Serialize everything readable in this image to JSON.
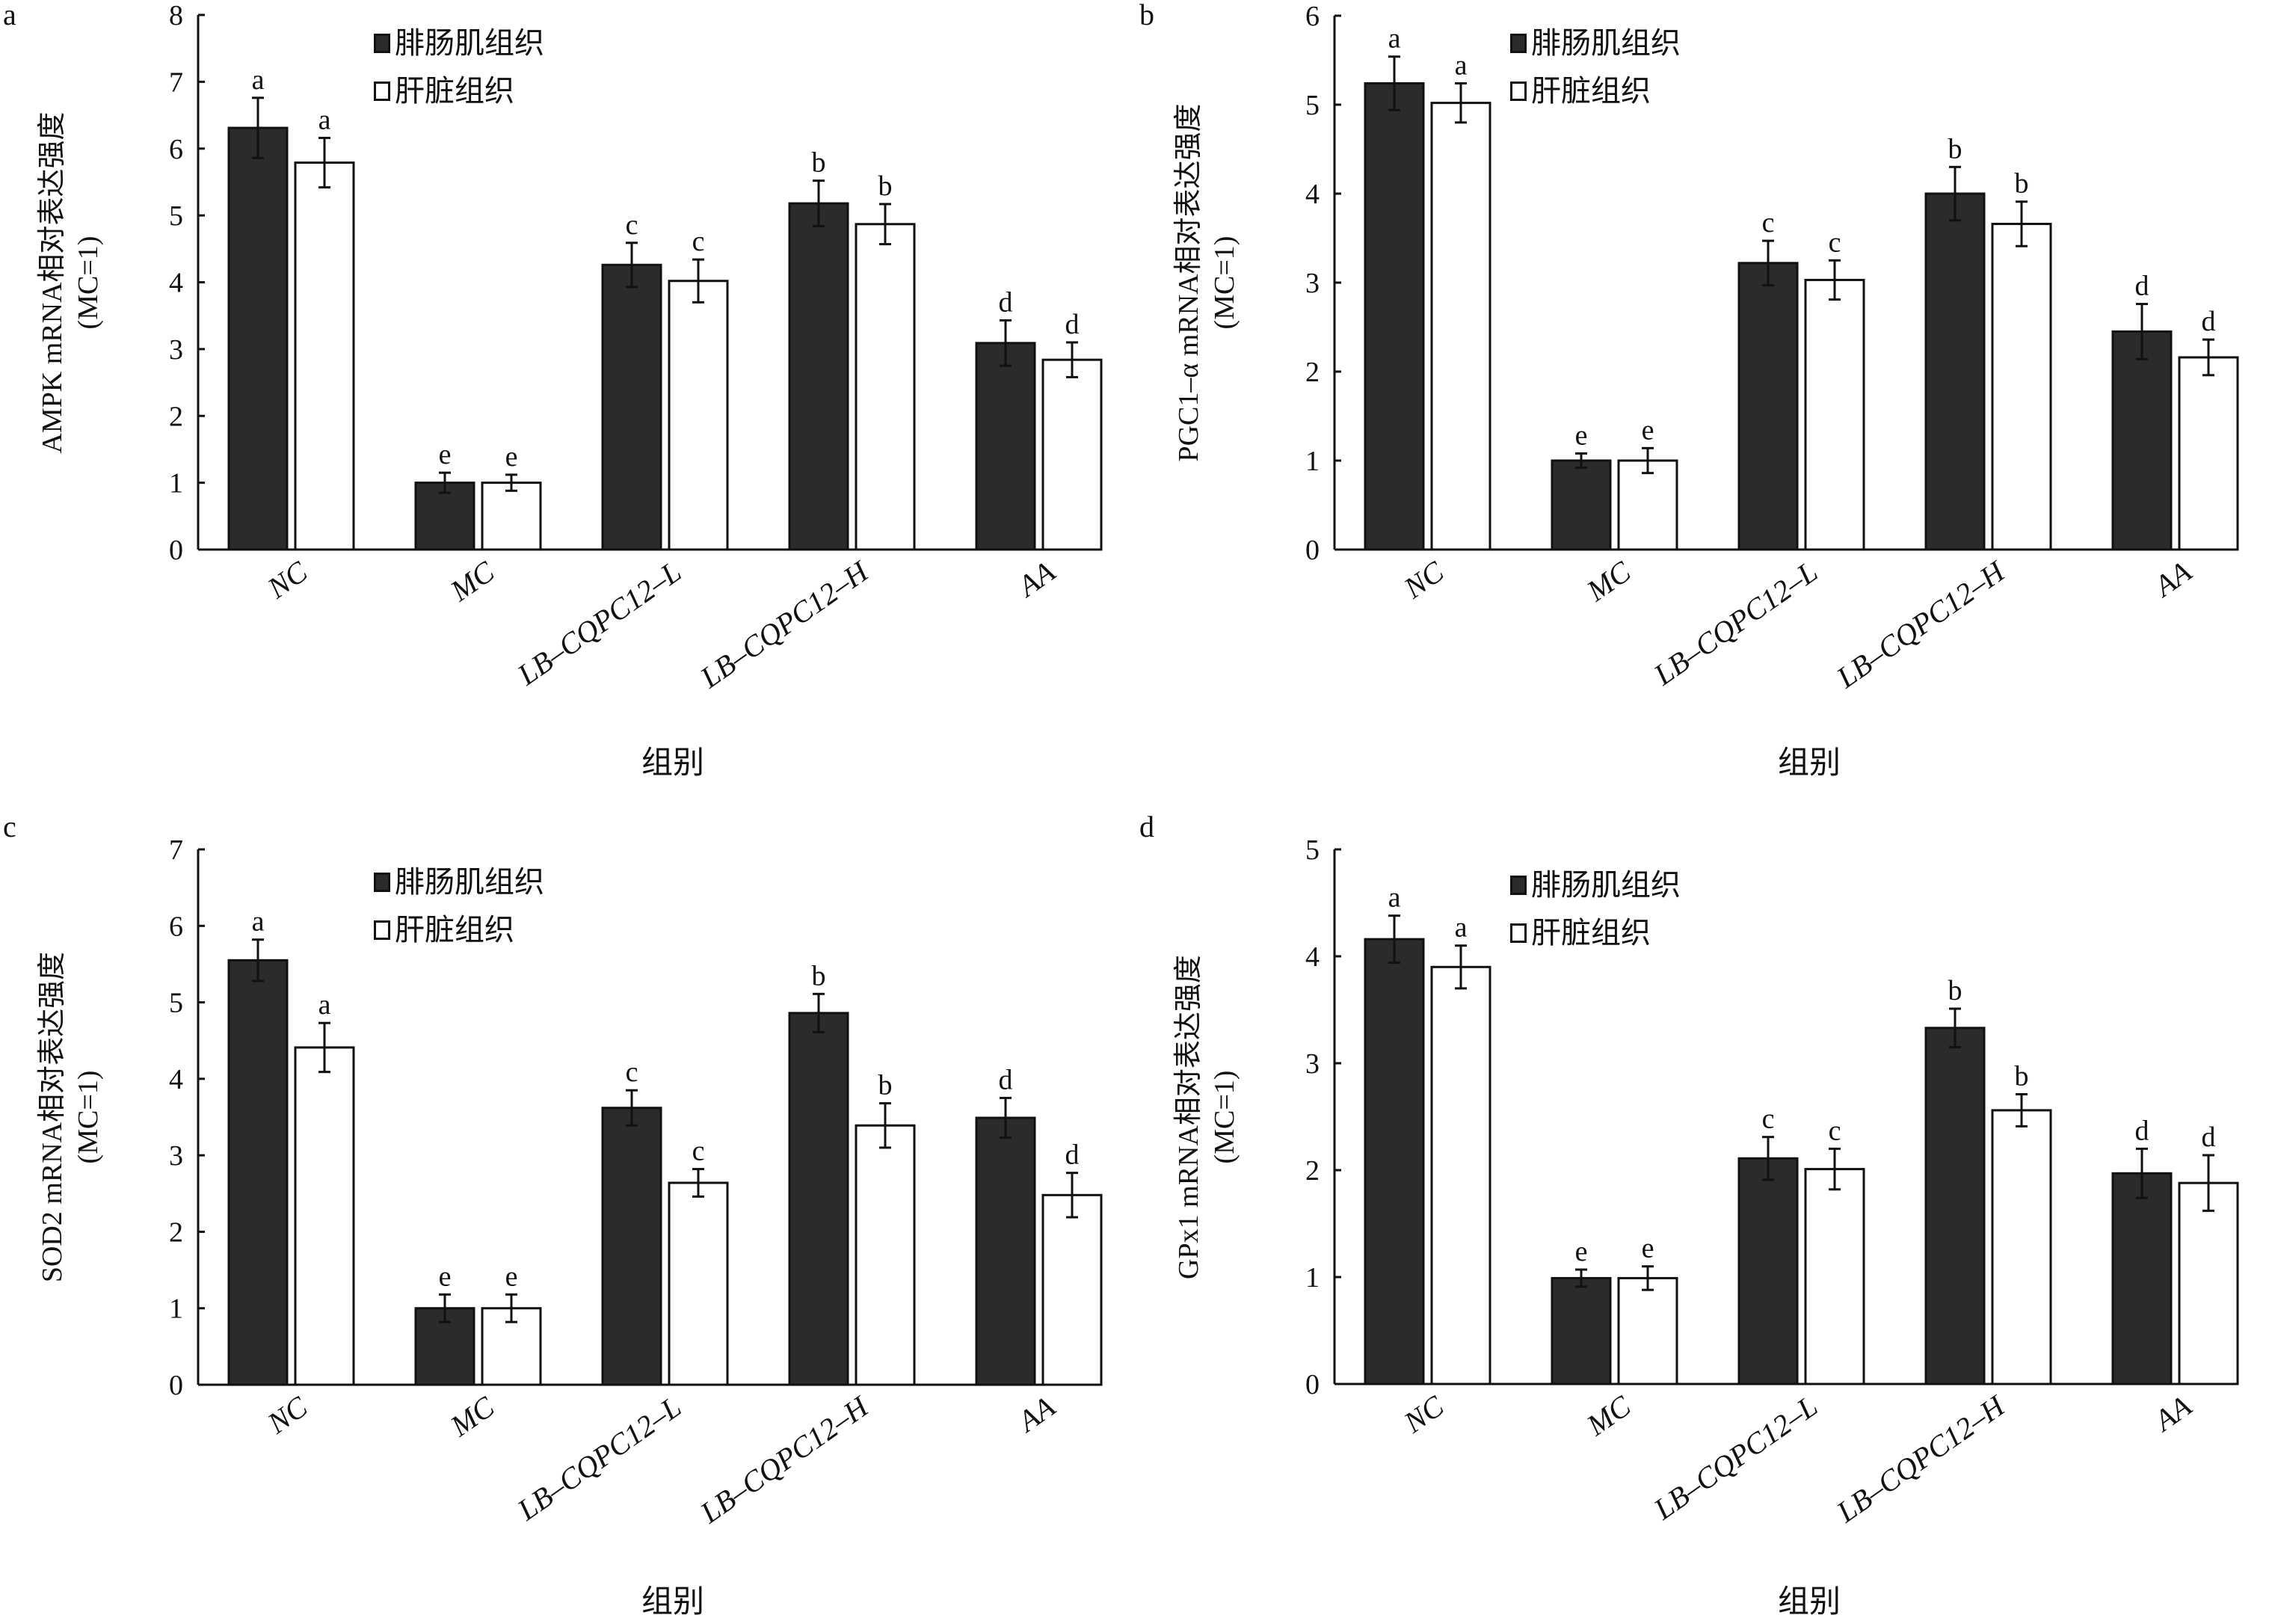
{
  "figure": {
    "legend": {
      "muscle": "腓肠肌组织",
      "liver": "肝脏组织"
    },
    "xlabel": "组别",
    "colors": {
      "muscle": "#2b2b2b",
      "liver": "#ffffff",
      "axis": "#111111"
    }
  },
  "chart_data": [
    {
      "panel": "a",
      "type": "bar",
      "title": "",
      "ylabel": "AMPK mRNA相对表达强度",
      "ylabel_unit": "(MC=1)",
      "xlabel": "组别",
      "ylim": [
        0,
        8
      ],
      "yticks": [
        "0",
        "1",
        "2",
        "3",
        "4",
        "5",
        "6",
        "7",
        "8"
      ],
      "categories": [
        "NC",
        "MC",
        "LB–CQPC12–L",
        "LB–CQPC12–H",
        "AA"
      ],
      "legend_position": "top-center",
      "series": [
        {
          "name": "腓肠肌组织",
          "values": [
            6.31,
            1.0,
            4.26,
            5.18,
            3.09
          ],
          "errors": [
            0.45,
            0.15,
            0.33,
            0.34,
            0.34
          ],
          "letters": [
            "a",
            "e",
            "c",
            "b",
            "d"
          ]
        },
        {
          "name": "肝脏组织",
          "values": [
            5.79,
            1.0,
            4.02,
            4.87,
            2.84
          ],
          "errors": [
            0.37,
            0.12,
            0.32,
            0.3,
            0.26
          ],
          "letters": [
            "a",
            "e",
            "c",
            "b",
            "d"
          ]
        }
      ]
    },
    {
      "panel": "b",
      "type": "bar",
      "title": "",
      "ylabel": "PGC1–α mRNA相对表达强度",
      "ylabel_unit": "(MC=1)",
      "xlabel": "组别",
      "ylim": [
        0,
        6
      ],
      "yticks": [
        "0",
        "1",
        "2",
        "3",
        "4",
        "5",
        "6"
      ],
      "categories": [
        "NC",
        "MC",
        "LB–CQPC12–L",
        "LB–CQPC12–H",
        "AA"
      ],
      "legend_position": "top-center",
      "series": [
        {
          "name": "腓肠肌组织",
          "values": [
            5.24,
            1.0,
            3.22,
            4.0,
            2.45
          ],
          "errors": [
            0.3,
            0.08,
            0.25,
            0.3,
            0.31
          ],
          "letters": [
            "a",
            "e",
            "c",
            "b",
            "d"
          ]
        },
        {
          "name": "肝脏组织",
          "values": [
            5.02,
            1.0,
            3.03,
            3.66,
            2.16
          ],
          "errors": [
            0.22,
            0.14,
            0.22,
            0.25,
            0.2
          ],
          "letters": [
            "a",
            "e",
            "c",
            "b",
            "d"
          ]
        }
      ]
    },
    {
      "panel": "c",
      "type": "bar",
      "title": "",
      "ylabel": "SOD2 mRNA相对表达强度",
      "ylabel_unit": "(MC=1)",
      "xlabel": "组别",
      "ylim": [
        0,
        7
      ],
      "yticks": [
        "0",
        "1",
        "2",
        "3",
        "4",
        "5",
        "6",
        "7"
      ],
      "categories": [
        "NC",
        "MC",
        "LB–CQPC12–L",
        "LB–CQPC12–H",
        "AA"
      ],
      "legend_position": "top-center",
      "series": [
        {
          "name": "腓肠肌组织",
          "values": [
            5.55,
            1.0,
            3.62,
            4.86,
            3.49
          ],
          "errors": [
            0.27,
            0.18,
            0.23,
            0.25,
            0.26
          ],
          "letters": [
            "a",
            "e",
            "c",
            "b",
            "d"
          ]
        },
        {
          "name": "肝脏组织",
          "values": [
            4.41,
            1.0,
            2.64,
            3.39,
            2.48
          ],
          "errors": [
            0.32,
            0.18,
            0.18,
            0.29,
            0.29
          ],
          "letters": [
            "a",
            "e",
            "c",
            "b",
            "d"
          ]
        }
      ]
    },
    {
      "panel": "d",
      "type": "bar",
      "title": "",
      "ylabel": "GPx1 mRNA相对表达强度",
      "ylabel_unit": "(MC=1)",
      "xlabel": "组别",
      "ylim": [
        0,
        5
      ],
      "yticks": [
        "0",
        "1",
        "2",
        "3",
        "4",
        "5"
      ],
      "categories": [
        "NC",
        "MC",
        "LB–CQPC12–L",
        "LB–CQPC12–H",
        "AA"
      ],
      "legend_position": "top-center",
      "series": [
        {
          "name": "腓肠肌组织",
          "values": [
            4.16,
            0.99,
            2.11,
            3.33,
            1.97
          ],
          "errors": [
            0.22,
            0.08,
            0.2,
            0.18,
            0.23
          ],
          "letters": [
            "a",
            "e",
            "c",
            "b",
            "d"
          ]
        },
        {
          "name": "肝脏组织",
          "values": [
            3.9,
            0.99,
            2.01,
            2.56,
            1.88
          ],
          "errors": [
            0.2,
            0.11,
            0.19,
            0.15,
            0.26
          ],
          "letters": [
            "a",
            "e",
            "c",
            "b",
            "d"
          ]
        }
      ]
    }
  ]
}
